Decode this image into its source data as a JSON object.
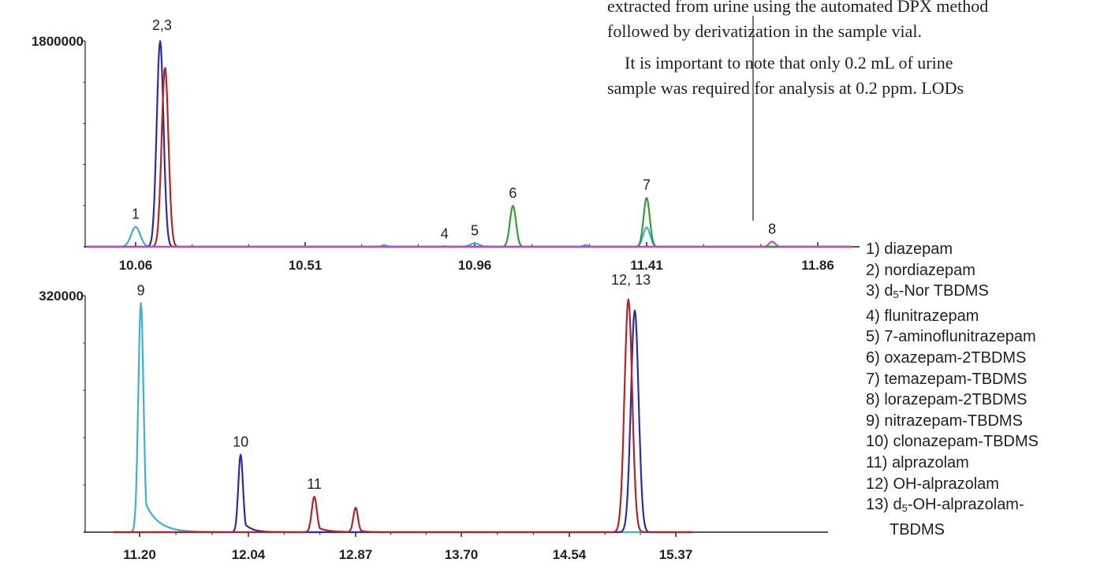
{
  "page_text": {
    "line1": "extracted from urine using the automated DPX method",
    "line2": "followed by derivatization in the sample vial.",
    "line3": "It is important to note that only 0.2 mL of urine",
    "line4": "sample was required for analysis at 0.2 ppm. LODs"
  },
  "legend": [
    {
      "id": "1",
      "text": "1) diazepam"
    },
    {
      "id": "2",
      "text": "2) nordiazepam"
    },
    {
      "id": "3",
      "pre": "3) d",
      "sub": "5",
      "post": "-Nor TBDMS"
    },
    {
      "id": "4",
      "text": "4) flunitrazepam"
    },
    {
      "id": "5",
      "text": "5) 7-aminoflunitrazepam"
    },
    {
      "id": "6",
      "text": "6) oxazepam-2TBDMS"
    },
    {
      "id": "7",
      "text": "7) temazepam-TBDMS"
    },
    {
      "id": "8",
      "text": "8) lorazepam-2TBDMS"
    },
    {
      "id": "9",
      "text": "9) nitrazepam-TBDMS"
    },
    {
      "id": "10",
      "text": "10) clonazepam-TBDMS"
    },
    {
      "id": "11",
      "text": "11) alprazolam"
    },
    {
      "id": "12",
      "text": "12) OH-alprazolam"
    },
    {
      "id": "13",
      "pre": "13) d",
      "sub": "5",
      "post": "-OH-alprazolam-",
      "cont": "TBDMS"
    }
  ],
  "colors": {
    "cyan": "#3fb0cf",
    "blue": "#2b2f9c",
    "red": "#b0262a",
    "green": "#3a9a3a",
    "magenta": "#c04cc0",
    "axis": "#231f20"
  },
  "chart_data": [
    {
      "type": "line",
      "title": "",
      "xlabel": "",
      "ylabel": "",
      "x_ticks": [
        "10.06",
        "10.51",
        "10.96",
        "11.41",
        "11.86"
      ],
      "xlim": [
        9.93,
        11.95
      ],
      "y_tick_label": "1800000",
      "ylim": [
        0,
        1800000
      ],
      "series": [
        {
          "color": "cyan",
          "peaks": [
            {
              "label": "1",
              "x": 10.06,
              "y": 175000,
              "w": 0.012
            },
            {
              "label": "",
              "x": 10.72,
              "y": 15000,
              "w": 0.006
            },
            {
              "label": "5",
              "x": 10.96,
              "y": 30000,
              "w": 0.012
            },
            {
              "label": "",
              "x": 11.25,
              "y": 15000,
              "w": 0.006
            },
            {
              "label": "",
              "x": 11.41,
              "y": 170000,
              "w": 0.009
            }
          ]
        },
        {
          "color": "blue",
          "peaks": [
            {
              "label": "",
              "x": 10.125,
              "y": 1800000,
              "w": 0.009
            }
          ]
        },
        {
          "color": "red",
          "peaks": [
            {
              "label": "",
              "x": 10.138,
              "y": 1570000,
              "w": 0.009
            }
          ]
        },
        {
          "color": "green",
          "peaks": [
            {
              "label": "4",
              "x": 10.88,
              "y": 5000,
              "w": 0.004
            },
            {
              "label": "6",
              "x": 11.06,
              "y": 360000,
              "w": 0.008
            },
            {
              "label": "7",
              "x": 11.41,
              "y": 430000,
              "w": 0.008
            }
          ]
        },
        {
          "color": "magenta",
          "peaks": [
            {
              "label": "8",
              "x": 11.74,
              "y": 45000,
              "w": 0.008
            }
          ]
        }
      ],
      "annotations": [
        {
          "text": "2,3",
          "x": 10.13,
          "y": 1800000
        }
      ]
    },
    {
      "type": "line",
      "title": "",
      "xlabel": "",
      "ylabel": "",
      "x_ticks": [
        "11.20",
        "12.04",
        "12.87",
        "13.70",
        "14.54",
        "15.37"
      ],
      "xlim": [
        11.0,
        15.5
      ],
      "y_tick_label": "320000",
      "ylim": [
        0,
        320000
      ],
      "series": [
        {
          "color": "cyan",
          "peaks": [
            {
              "label": "9",
              "x": 11.21,
              "y": 310000,
              "w": 0.02,
              "tail": 0.1
            }
          ]
        },
        {
          "color": "blue",
          "peaks": [
            {
              "label": "10",
              "x": 11.98,
              "y": 105000,
              "w": 0.018,
              "tail": 0.06
            },
            {
              "label": "",
              "x": 15.05,
              "y": 300000,
              "w": 0.03
            }
          ]
        },
        {
          "color": "red",
          "peaks": [
            {
              "label": "11",
              "x": 12.55,
              "y": 48000,
              "w": 0.02,
              "tail": 0.08
            },
            {
              "label": "",
              "x": 12.87,
              "y": 33000,
              "w": 0.018,
              "tail": 0.04
            },
            {
              "label": "",
              "x": 15.0,
              "y": 315000,
              "w": 0.03
            }
          ]
        }
      ],
      "annotations": [
        {
          "text": "12, 13",
          "x": 15.02,
          "y": 320000
        }
      ]
    }
  ]
}
